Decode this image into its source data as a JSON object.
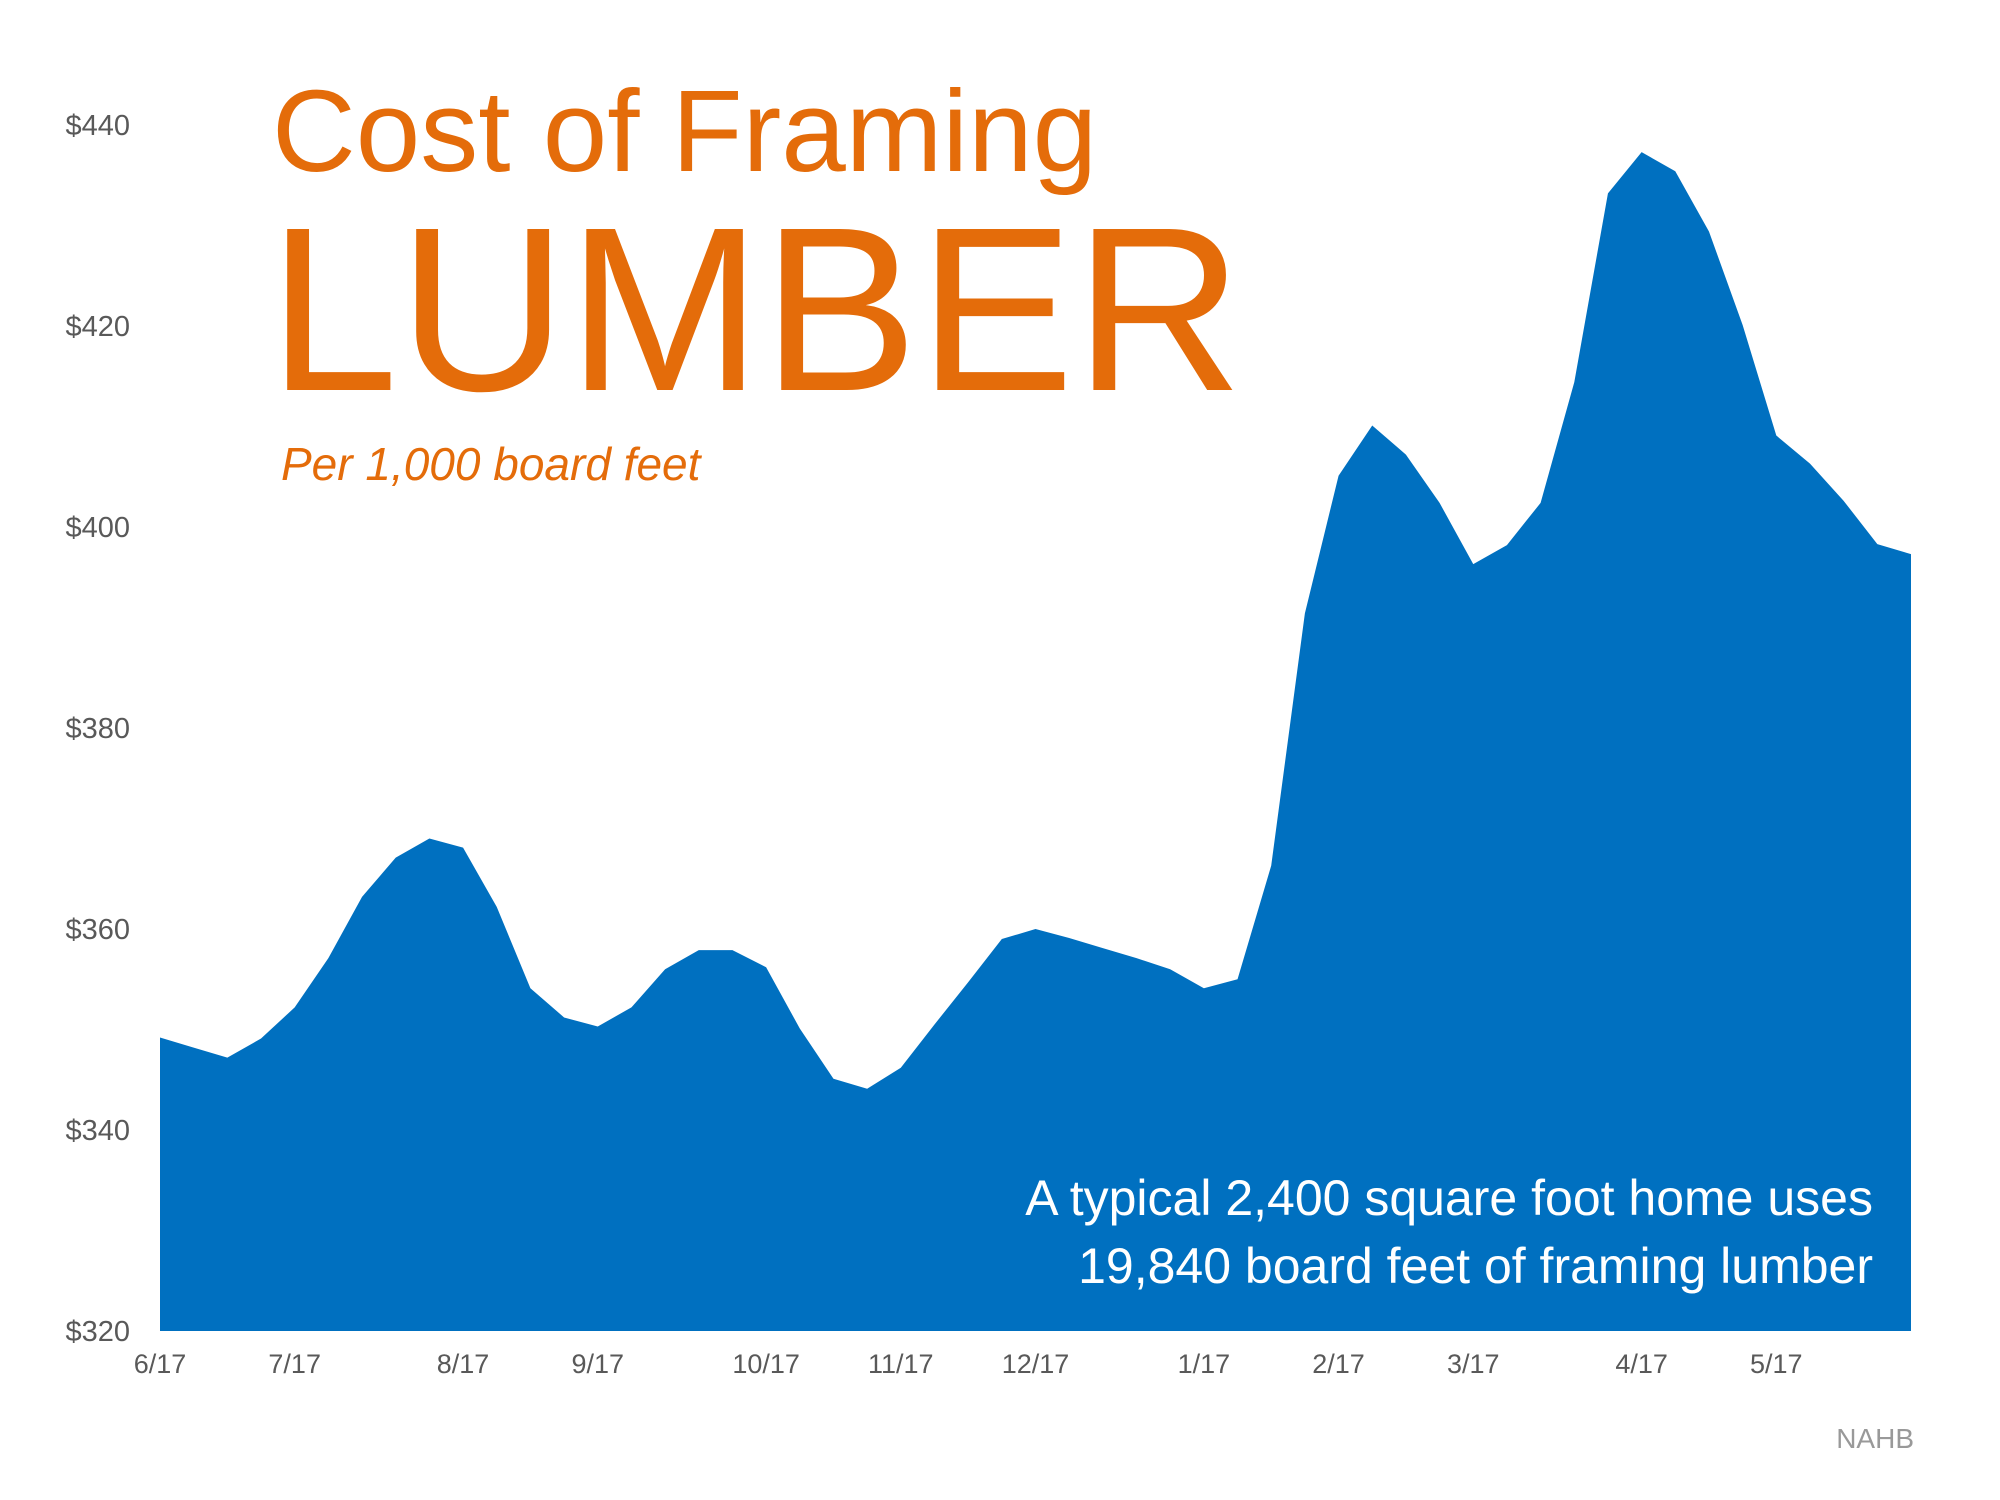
{
  "chart_data": {
    "type": "area",
    "title": [
      "Cost of Framing",
      "LUMBER"
    ],
    "subtitle": "Per 1,000 board feet",
    "annotation": [
      "A typical 2,400 square foot home uses",
      "19,840 board feet of framing lumber"
    ],
    "source": "NAHB",
    "color": "#0070c0",
    "categories": [
      "6/17",
      null,
      null,
      null,
      "7/17",
      null,
      null,
      null,
      null,
      "8/17",
      null,
      null,
      null,
      "9/17",
      null,
      null,
      null,
      null,
      "10/17",
      null,
      null,
      null,
      "11/17",
      null,
      null,
      null,
      "12/17",
      null,
      null,
      null,
      null,
      "1/17",
      null,
      null,
      null,
      "2/17",
      null,
      null,
      null,
      "3/17",
      null,
      null,
      null,
      null,
      "4/17",
      null,
      null,
      null,
      "5/17",
      null,
      null,
      null,
      null
    ],
    "values": [
      349.2,
      348.2,
      347.2,
      349.1,
      352.2,
      357.1,
      363.2,
      367.1,
      369.0,
      368.1,
      362.2,
      354.1,
      351.2,
      350.3,
      352.2,
      356.0,
      357.9,
      357.9,
      356.2,
      350.1,
      345.1,
      344.1,
      346.2,
      350.5,
      354.7,
      359.0,
      360.0,
      359.1,
      358.1,
      357.1,
      356.0,
      354.1,
      355.0,
      366.3,
      391.4,
      405.1,
      410.1,
      407.2,
      402.4,
      396.3,
      398.2,
      402.4,
      414.4,
      433.2,
      437.3,
      435.4,
      429.4,
      420.1,
      409.1,
      406.3,
      402.6,
      398.3,
      397.3
    ],
    "ylim": [
      320,
      440
    ],
    "yticks": [
      {
        "value": 320,
        "label": "$320"
      },
      {
        "value": 340,
        "label": "$340"
      },
      {
        "value": 360,
        "label": "$360"
      },
      {
        "value": 380,
        "label": "$380"
      },
      {
        "value": 400,
        "label": "$400"
      },
      {
        "value": 420,
        "label": "$420"
      },
      {
        "value": 440,
        "label": "$440"
      }
    ],
    "grid": false
  }
}
